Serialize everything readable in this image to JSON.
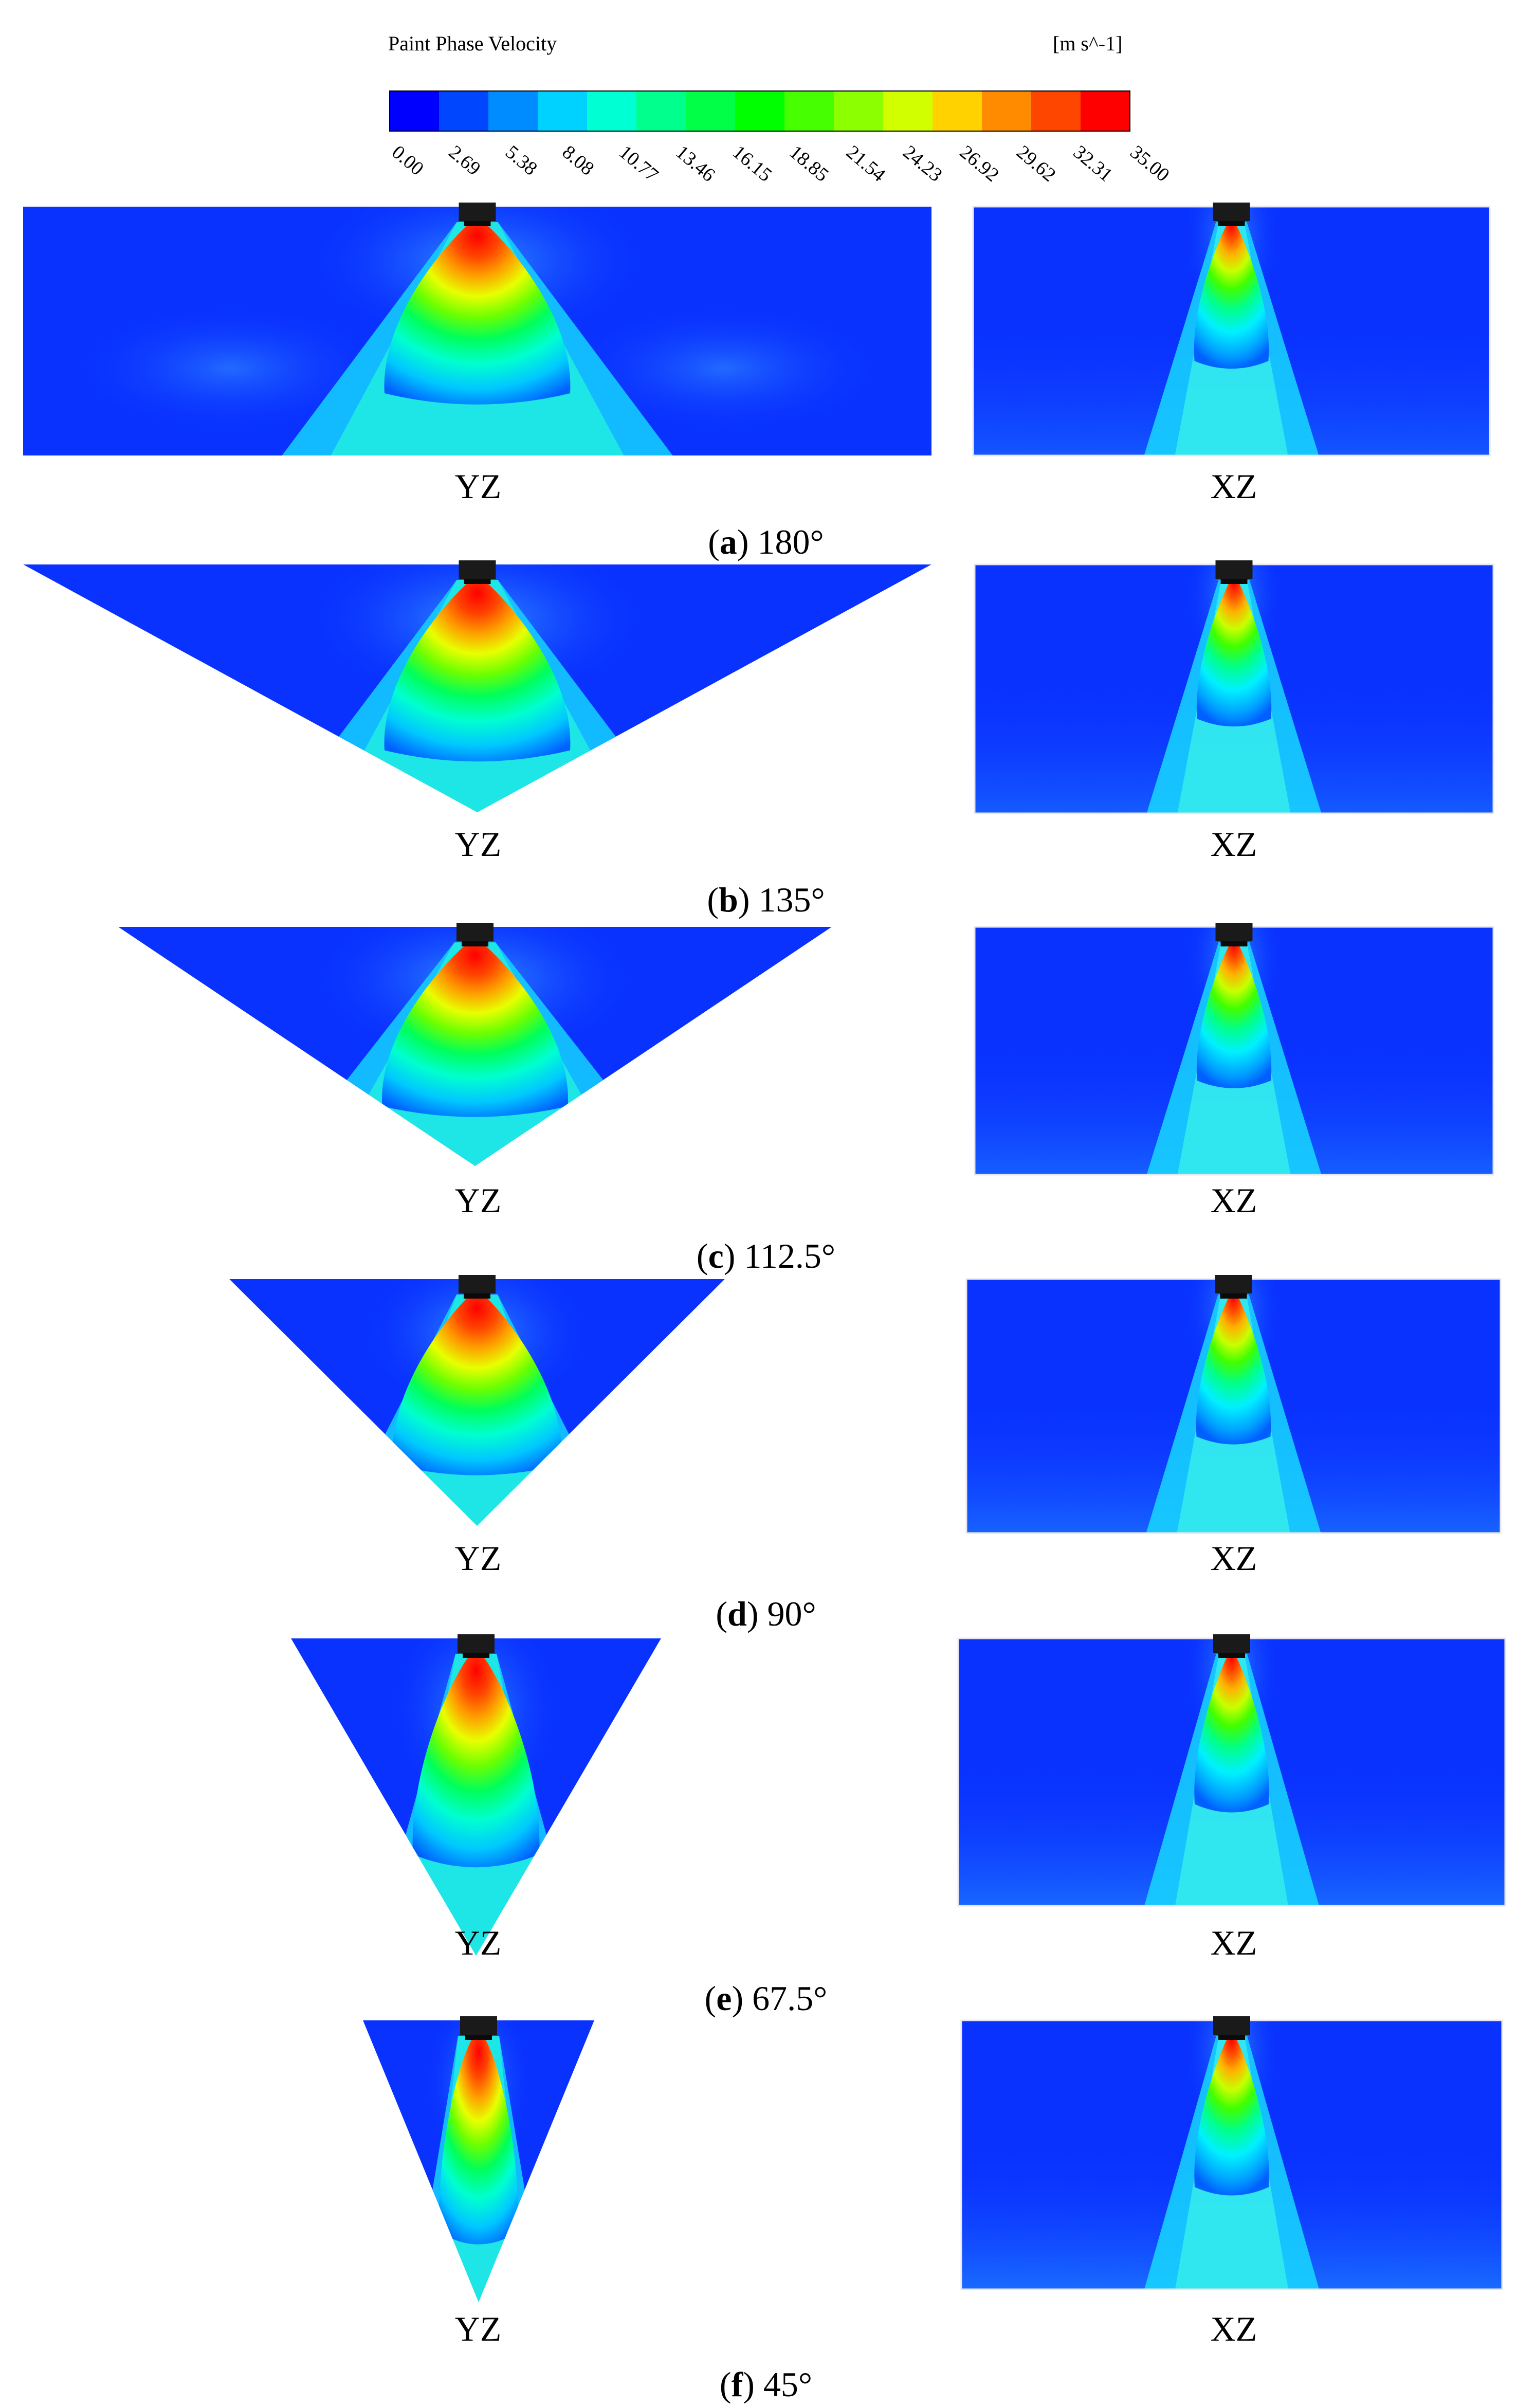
{
  "legend": {
    "title": "Paint Phase Velocity",
    "units": "[m s^-1]",
    "ticks": [
      "0.00",
      "2.69",
      "5.38",
      "8.08",
      "10.77",
      "13.46",
      "16.15",
      "18.85",
      "21.54",
      "24.23",
      "26.92",
      "29.62",
      "32.31",
      "35.00"
    ],
    "colormap": [
      "#0000ff",
      "#0046ff",
      "#008cff",
      "#00d2ff",
      "#00ffd2",
      "#00ff8c",
      "#00ff46",
      "#00ff00",
      "#46ff00",
      "#8cff00",
      "#d2ff00",
      "#ffd200",
      "#ff8c00",
      "#ff4600",
      "#ff0000"
    ]
  },
  "panels": [
    {
      "letter": "a",
      "angle": "180°",
      "yz_label": "YZ",
      "xz_label": "XZ"
    },
    {
      "letter": "b",
      "angle": "135°",
      "yz_label": "YZ",
      "xz_label": "XZ"
    },
    {
      "letter": "c",
      "angle": "112.5°",
      "yz_label": "YZ",
      "xz_label": "XZ"
    },
    {
      "letter": "d",
      "angle": "90°",
      "yz_label": "YZ",
      "xz_label": "XZ"
    },
    {
      "letter": "e",
      "angle": "67.5°",
      "yz_label": "YZ",
      "xz_label": "XZ"
    },
    {
      "letter": "f",
      "angle": "45°",
      "yz_label": "YZ",
      "xz_label": "XZ"
    }
  ]
}
